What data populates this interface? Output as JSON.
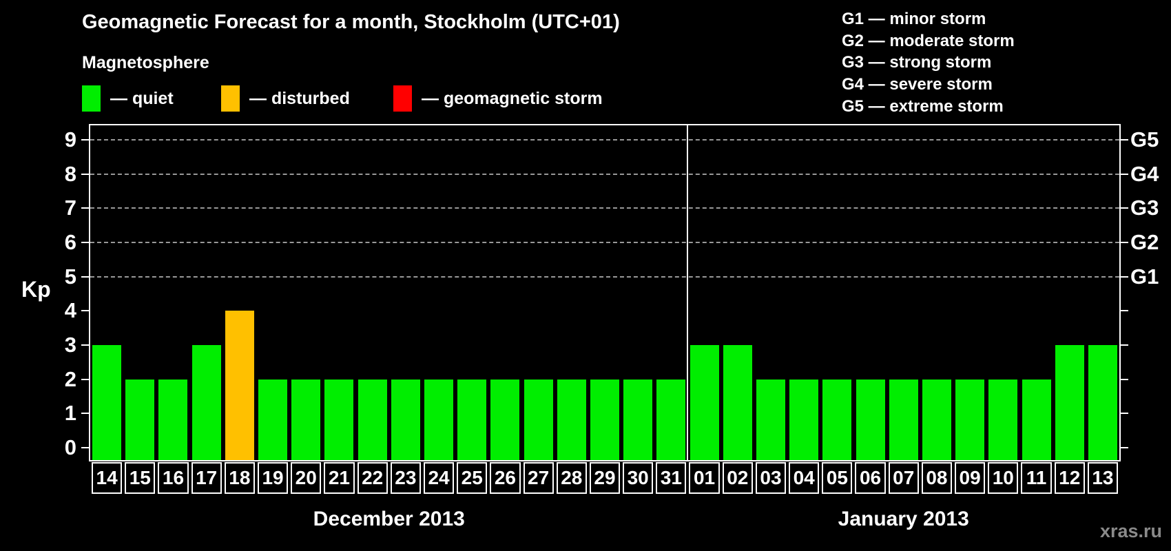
{
  "title": "Geomagnetic Forecast for a month, Stockholm (UTC+01)",
  "subtitle": "Magnetosphere",
  "legend": {
    "items": [
      {
        "key": "quiet",
        "label": "— quiet",
        "color": "#00ee00",
        "x": 0
      },
      {
        "key": "disturbed",
        "label": "— disturbed",
        "color": "#ffc000",
        "x": 202
      },
      {
        "key": "storm",
        "label": "— geomagnetic storm",
        "color": "#ff0000",
        "x": 452
      }
    ]
  },
  "g_legend": [
    "G1 — minor storm",
    "G2 — moderate storm",
    "G3 — strong storm",
    "G4 — severe storm",
    "G5 — extreme storm"
  ],
  "watermark": "xras.ru",
  "chart_data": {
    "type": "bar",
    "ylabel": "Kp",
    "ylim": [
      0,
      9
    ],
    "y_ticks": [
      0,
      1,
      2,
      3,
      4,
      5,
      6,
      7,
      8,
      9
    ],
    "gridlines_kp": [
      5,
      6,
      7,
      8,
      9
    ],
    "grid": "dashed horizontal at Kp 5-9 only",
    "legend_position": "top",
    "right_axis": [
      {
        "label": "G1",
        "kp": 5
      },
      {
        "label": "G2",
        "kp": 6
      },
      {
        "label": "G3",
        "kp": 7
      },
      {
        "label": "G4",
        "kp": 8
      },
      {
        "label": "G5",
        "kp": 9
      }
    ],
    "colors": {
      "quiet": "#00ee00",
      "disturbed": "#ffc000",
      "storm": "#ff0000"
    },
    "months": [
      {
        "label": "December 2013",
        "days": [
          "14",
          "15",
          "16",
          "17",
          "18",
          "19",
          "20",
          "21",
          "22",
          "23",
          "24",
          "25",
          "26",
          "27",
          "28",
          "29",
          "30",
          "31"
        ],
        "values": [
          3,
          2,
          2,
          3,
          4,
          2,
          2,
          2,
          2,
          2,
          2,
          2,
          2,
          2,
          2,
          2,
          2,
          2
        ],
        "statuses": [
          "quiet",
          "quiet",
          "quiet",
          "quiet",
          "disturbed",
          "quiet",
          "quiet",
          "quiet",
          "quiet",
          "quiet",
          "quiet",
          "quiet",
          "quiet",
          "quiet",
          "quiet",
          "quiet",
          "quiet",
          "quiet"
        ]
      },
      {
        "label": "January 2013",
        "days": [
          "01",
          "02",
          "03",
          "04",
          "05",
          "06",
          "07",
          "08",
          "09",
          "10",
          "11",
          "12",
          "13"
        ],
        "values": [
          3,
          3,
          2,
          2,
          2,
          2,
          2,
          2,
          2,
          2,
          2,
          3,
          3
        ],
        "statuses": [
          "quiet",
          "quiet",
          "quiet",
          "quiet",
          "quiet",
          "quiet",
          "quiet",
          "quiet",
          "quiet",
          "quiet",
          "quiet",
          "quiet",
          "quiet"
        ]
      }
    ]
  }
}
